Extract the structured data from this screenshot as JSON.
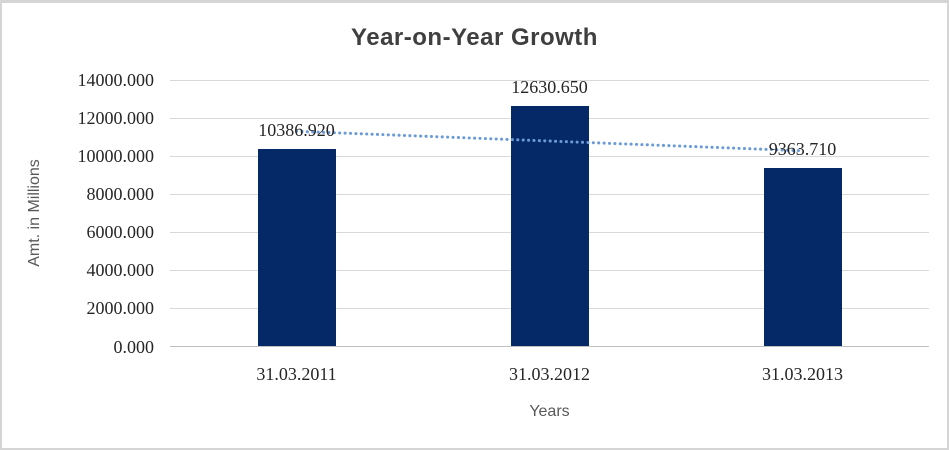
{
  "chart_data": {
    "type": "bar",
    "title": "Year-on-Year Growth",
    "xlabel": "Years",
    "ylabel": "Amt. in Millions",
    "categories": [
      "31.03.2011",
      "31.03.2012",
      "31.03.2013"
    ],
    "values": [
      10386.92,
      12630.65,
      9363.71
    ],
    "value_labels": [
      "10386.920",
      "12630.650",
      "9363.710"
    ],
    "yticks": [
      0,
      2000,
      4000,
      6000,
      8000,
      10000,
      12000,
      14000
    ],
    "ytick_labels": [
      "0.000",
      "2000.000",
      "4000.000",
      "6000.000",
      "8000.000",
      "10000.000",
      "12000.000",
      "14000.000"
    ],
    "ylim": [
      0,
      14000
    ],
    "grid": true,
    "legend": false,
    "trendline": {
      "type": "linear",
      "style": "dotted"
    },
    "colors": {
      "bar": "#052866",
      "trendline": "#6b9bd7",
      "gridline": "#d9d9d9",
      "axis_line": "#bfbfbf",
      "title_text": "#3f3f3f",
      "tick_text": "#262626",
      "axis_title_text": "#595959"
    }
  }
}
